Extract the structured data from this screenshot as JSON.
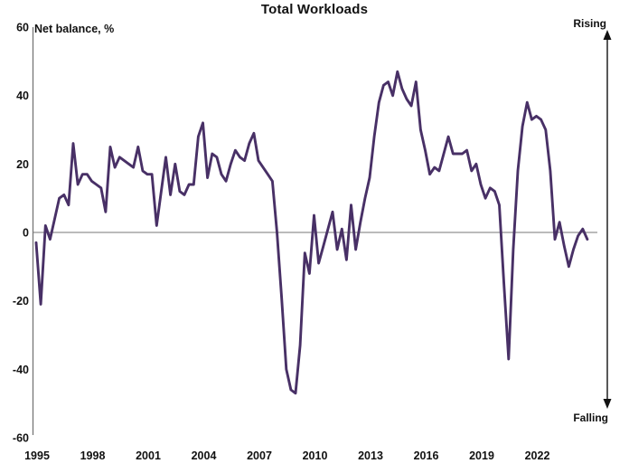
{
  "chart_data": {
    "type": "line",
    "title": "Total Workloads",
    "ylabel": "Net balance, %",
    "annotations": {
      "top": "Rising",
      "bottom": "Falling"
    },
    "line_color": "#483066",
    "axis_color": "#777777",
    "arrow_color": "#111111",
    "ylim": [
      -60,
      60
    ],
    "xlim": [
      1995,
      2025
    ],
    "grid": "zero-line-only",
    "legend": "none",
    "y_ticks": [
      60,
      40,
      20,
      0,
      -20,
      -40,
      -60
    ],
    "x_ticks": [
      1995,
      1998,
      2001,
      2004,
      2007,
      2010,
      2013,
      2016,
      2019,
      2022
    ],
    "series_name": "Total Workloads net balance, %",
    "frequency": "quarterly",
    "start_year": 1995,
    "values": [
      -3,
      -21,
      2,
      -2,
      4,
      10,
      11,
      8,
      26,
      14,
      17,
      17,
      15,
      14,
      13,
      6,
      25,
      19,
      22,
      21,
      20,
      19,
      25,
      18,
      17,
      17,
      2,
      12,
      22,
      11,
      20,
      12,
      11,
      14,
      14,
      28,
      32,
      16,
      23,
      22,
      17,
      15,
      20,
      24,
      22,
      21,
      26,
      29,
      21,
      19,
      17,
      15,
      0,
      -19,
      -40,
      -46,
      -47,
      -33,
      -6,
      -12,
      5,
      -9,
      -4,
      1,
      6,
      -5,
      1,
      -8,
      8,
      -5,
      3,
      10,
      16,
      28,
      38,
      43,
      44,
      40,
      47,
      42,
      39,
      37,
      44,
      30,
      24,
      17,
      19,
      18,
      23,
      28,
      23,
      23,
      23,
      24,
      18,
      20,
      14,
      10,
      13,
      12,
      8,
      -15,
      -37,
      -5,
      18,
      31,
      38,
      33,
      34,
      33,
      30,
      18,
      -2,
      3,
      -4,
      -10,
      -5,
      -1,
      1,
      -2
    ]
  }
}
